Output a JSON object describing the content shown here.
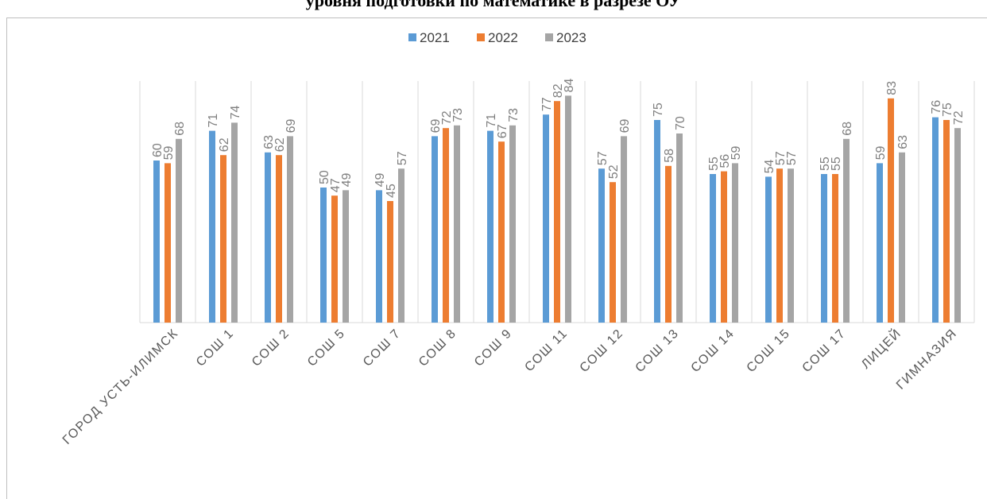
{
  "title": "уровня подготовки по математике в разрезе ОУ",
  "chart_data": {
    "type": "bar",
    "categories": [
      "ГОРОД УСТЬ-ИЛИМСК",
      "СОШ 1",
      "СОШ 2",
      "СОШ 5",
      "СОШ 7",
      "СОШ 8",
      "СОШ 9",
      "СОШ 11",
      "СОШ 12",
      "СОШ 13",
      "СОШ 14",
      "СОШ 15",
      "СОШ 17",
      "ЛИЦЕЙ",
      "ГИМНАЗИЯ"
    ],
    "series": [
      {
        "name": "2021",
        "color": "#5b9bd5",
        "values": [
          60,
          71,
          63,
          50,
          49,
          69,
          71,
          77,
          57,
          75,
          55,
          54,
          55,
          59,
          76
        ]
      },
      {
        "name": "2022",
        "color": "#ed7d31",
        "values": [
          59,
          62,
          62,
          47,
          45,
          72,
          67,
          82,
          52,
          58,
          56,
          57,
          55,
          83,
          75
        ]
      },
      {
        "name": "2023",
        "color": "#a5a5a5",
        "values": [
          68,
          74,
          69,
          49,
          57,
          73,
          73,
          84,
          69,
          70,
          59,
          57,
          68,
          63,
          72
        ]
      }
    ],
    "ylim": [
      0,
      90
    ],
    "legend": "top",
    "grid": "vertical category separators"
  }
}
